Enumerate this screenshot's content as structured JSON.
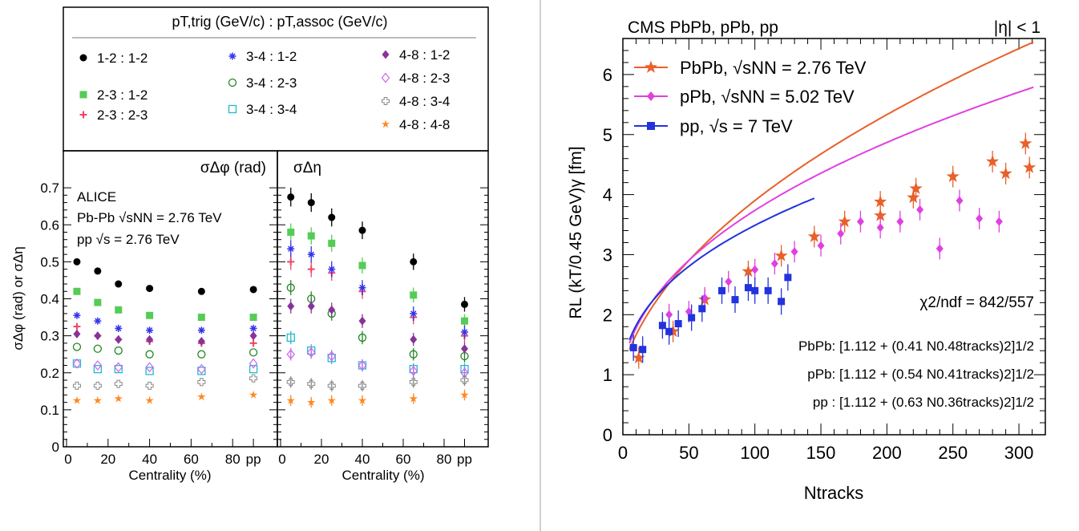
{
  "chart_data": [
    {
      "type": "scatter",
      "title": "ALICE",
      "annotations": [
        "ALICE",
        "Pb-Pb",
        "√sNN = 2.76 TeV",
        "pp",
        "√s = 2.76 TeV"
      ],
      "legend_title": {
        "left": "pT,trig (GeV/c)",
        "sep": " : ",
        "right": "pT,assoc (GeV/c)"
      },
      "ylabel": "σΔφ (rad) or σΔη",
      "ylim": [
        0,
        0.8
      ],
      "yticks": [
        "0",
        "0.1",
        "0.2",
        "0.3",
        "0.4",
        "0.5",
        "0.6",
        "0.7"
      ],
      "x_positions": [
        5,
        15,
        25,
        40,
        65,
        90
      ],
      "xticks": [
        "0",
        "20",
        "40",
        "60",
        "80",
        "pp"
      ],
      "xlabel": "Centrality (%)",
      "panels": [
        {
          "name": "σΔφ (rad)",
          "label": "σΔφ (rad)"
        },
        {
          "name": "σΔη",
          "label": "σΔη"
        }
      ],
      "series": [
        {
          "name": "1-2 : 1-2",
          "marker": "circle",
          "color": "#000000",
          "phi": [
            0.5,
            0.475,
            0.44,
            0.428,
            0.42,
            0.425
          ],
          "eta": [
            0.675,
            0.66,
            0.62,
            0.585,
            0.5,
            0.385
          ]
        },
        {
          "name": "2-3 : 1-2",
          "marker": "square",
          "color": "#55cc55",
          "phi": [
            0.42,
            0.39,
            0.37,
            0.355,
            0.35,
            0.35
          ],
          "eta": [
            0.58,
            0.57,
            0.55,
            0.49,
            0.41,
            0.34
          ]
        },
        {
          "name": "2-3 : 2-3",
          "marker": "plus",
          "color": "#ee4466",
          "phi": [
            0.325,
            0.3,
            0.29,
            0.285,
            0.28,
            0.28
          ],
          "eta": [
            0.5,
            0.48,
            0.47,
            0.42,
            0.35,
            0.3
          ]
        },
        {
          "name": "3-4 : 1-2",
          "marker": "asterisk",
          "color": "#3333ee",
          "phi": [
            0.355,
            0.34,
            0.32,
            0.315,
            0.315,
            0.32
          ],
          "eta": [
            0.535,
            0.52,
            0.48,
            0.43,
            0.36,
            0.31
          ]
        },
        {
          "name": "3-4 : 2-3",
          "marker": "ocircle",
          "color": "#228822",
          "phi": [
            0.27,
            0.265,
            0.26,
            0.25,
            0.25,
            0.255
          ],
          "eta": [
            0.43,
            0.4,
            0.36,
            0.295,
            0.25,
            0.245
          ]
        },
        {
          "name": "3-4 : 3-4",
          "marker": "osquare",
          "color": "#22bbcc",
          "phi": [
            0.225,
            0.21,
            0.21,
            0.205,
            0.205,
            0.21
          ],
          "eta": [
            0.295,
            0.26,
            0.24,
            0.22,
            0.21,
            0.21
          ]
        },
        {
          "name": "4-8 : 1-2",
          "marker": "diamond",
          "color": "#883399",
          "phi": [
            0.305,
            0.3,
            0.29,
            0.29,
            0.285,
            0.3
          ],
          "eta": [
            0.38,
            0.38,
            0.37,
            0.34,
            0.29,
            0.265
          ]
        },
        {
          "name": "4-8 : 2-3",
          "marker": "odiamond",
          "color": "#cc66ee",
          "phi": [
            0.225,
            0.22,
            0.215,
            0.215,
            0.21,
            0.225
          ],
          "eta": [
            0.25,
            0.255,
            0.245,
            0.22,
            0.205,
            0.2
          ]
        },
        {
          "name": "4-8 : 3-4",
          "marker": "ocross",
          "color": "#888888",
          "phi": [
            0.165,
            0.165,
            0.17,
            0.165,
            0.175,
            0.185
          ],
          "eta": [
            0.175,
            0.17,
            0.165,
            0.165,
            0.175,
            0.18
          ]
        },
        {
          "name": "4-8 : 4-8",
          "marker": "star",
          "color": "#ff8822",
          "phi": [
            0.125,
            0.125,
            0.13,
            0.125,
            0.135,
            0.14
          ],
          "eta": [
            0.125,
            0.12,
            0.125,
            0.125,
            0.13,
            0.14
          ]
        }
      ]
    },
    {
      "type": "scatter",
      "title": "CMS PbPb, pPb, pp",
      "title_right": "|η| < 1",
      "xlabel": "Ntracks",
      "ylabel": "RL (kT/0.45 GeV)γ [fm]",
      "xlim": [
        0,
        320
      ],
      "ylim": [
        0,
        6.6
      ],
      "xticks": [
        "0",
        "50",
        "100",
        "150",
        "200",
        "250",
        "300"
      ],
      "yticks": [
        "0",
        "1",
        "2",
        "3",
        "4",
        "5",
        "6"
      ],
      "legend": [
        {
          "name": "PbPb, √sNN = 2.76 TeV",
          "color": "#e8602a",
          "marker": "star"
        },
        {
          "name": "pPb, √sNN = 5.02 TeV",
          "color": "#e040e0",
          "marker": "diamond"
        },
        {
          "name": "pp, √s = 7 TeV",
          "color": "#2233dd",
          "marker": "square"
        }
      ],
      "chi2_label": "χ2/ndf = 842/557",
      "fits": [
        {
          "system": "PbPb",
          "text": "PbPb: [1.112 + (0.41 N0.48tracks)2]1/2",
          "a": 1.11,
          "b": 0.41,
          "c": 0.48,
          "xmax": 312
        },
        {
          "system": "pPb",
          "text": "pPb: [1.112 + (0.54 N0.41tracks)2]1/2",
          "a": 1.11,
          "b": 0.54,
          "c": 0.41,
          "xmax": 312
        },
        {
          "system": "pp",
          "text": "pp : [1.112 + (0.63 N0.36tracks)2]1/2",
          "a": 1.11,
          "b": 0.63,
          "c": 0.36,
          "xmax": 145
        }
      ],
      "series": [
        {
          "name": "PbPb",
          "color": "#e8602a",
          "marker": "star",
          "x": [
            12,
            38,
            62,
            95,
            120,
            145,
            168,
            195,
            222,
            250,
            280,
            305,
            220,
            195,
            290,
            308
          ],
          "y": [
            1.28,
            1.72,
            2.25,
            2.72,
            2.98,
            3.3,
            3.55,
            3.88,
            4.1,
            4.3,
            4.55,
            4.85,
            3.95,
            3.65,
            4.35,
            4.45
          ]
        },
        {
          "name": "pPb",
          "color": "#e040e0",
          "marker": "diamond",
          "x": [
            35,
            50,
            62,
            80,
            100,
            115,
            130,
            150,
            165,
            180,
            195,
            210,
            225,
            240,
            255,
            270,
            285
          ],
          "y": [
            2.0,
            2.05,
            2.28,
            2.55,
            2.75,
            2.85,
            3.05,
            3.15,
            3.35,
            3.55,
            3.45,
            3.55,
            3.75,
            3.1,
            3.9,
            3.6,
            3.55
          ]
        },
        {
          "name": "pp",
          "color": "#2233dd",
          "marker": "square",
          "x": [
            8,
            15,
            30,
            35,
            42,
            52,
            60,
            75,
            85,
            95,
            100,
            110,
            120,
            125
          ],
          "y": [
            1.45,
            1.42,
            1.82,
            1.72,
            1.85,
            1.95,
            2.1,
            2.4,
            2.25,
            2.45,
            2.4,
            2.4,
            2.22,
            2.62
          ]
        }
      ]
    }
  ]
}
